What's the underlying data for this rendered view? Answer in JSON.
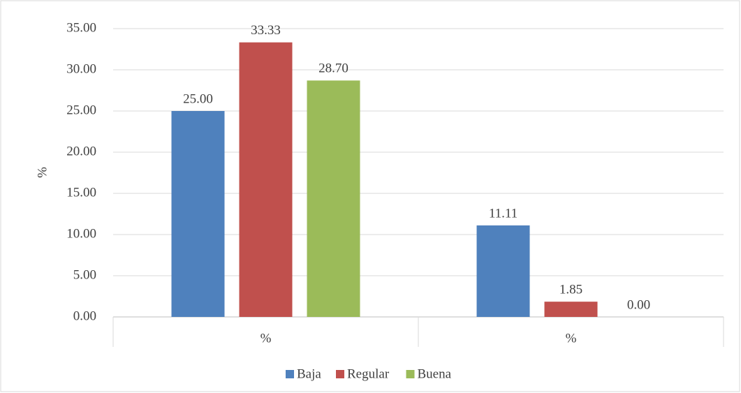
{
  "chart_data": {
    "type": "bar",
    "ylabel": "%",
    "categories": [
      "%",
      "%"
    ],
    "series": [
      {
        "name": "Baja",
        "color": "#4f81bd",
        "values": [
          25,
          11.11
        ],
        "value_labels": [
          "25.00",
          "11.11"
        ]
      },
      {
        "name": "Regular",
        "color": "#c0504d",
        "values": [
          33.33,
          1.85
        ],
        "value_labels": [
          "33.33",
          "1.85"
        ]
      },
      {
        "name": "Buena",
        "color": "#9bbb59",
        "values": [
          28.7,
          0
        ],
        "value_labels": [
          "28.70",
          "0.00"
        ]
      }
    ],
    "ylim": [
      0,
      35
    ],
    "yticks": [
      {
        "value": 0,
        "label": "0.00"
      },
      {
        "value": 5,
        "label": "5.00"
      },
      {
        "value": 10,
        "label": "10.00"
      },
      {
        "value": 15,
        "label": "15.00"
      },
      {
        "value": 20,
        "label": "20.00"
      },
      {
        "value": 25,
        "label": "25.00"
      },
      {
        "value": 30,
        "label": "30.00"
      },
      {
        "value": 35,
        "label": "35.00"
      }
    ],
    "grid": true,
    "legend": "bottom"
  }
}
